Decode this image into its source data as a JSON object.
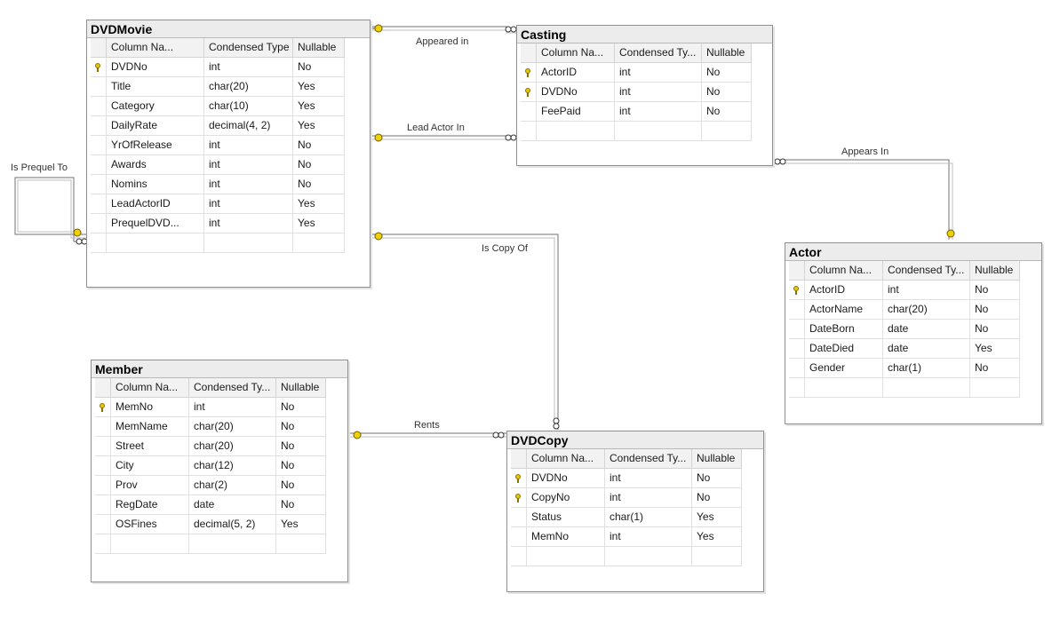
{
  "tables": [
    {
      "name": "DVDMovie",
      "headers": [
        "Column Na...",
        "Condensed Type",
        "Nullable"
      ],
      "rows": [
        {
          "key": true,
          "col": "DVDNo",
          "type": "int",
          "null": "No"
        },
        {
          "key": false,
          "col": "Title",
          "type": "char(20)",
          "null": "Yes"
        },
        {
          "key": false,
          "col": "Category",
          "type": "char(10)",
          "null": "Yes"
        },
        {
          "key": false,
          "col": "DailyRate",
          "type": "decimal(4, 2)",
          "null": "Yes"
        },
        {
          "key": false,
          "col": "YrOfRelease",
          "type": "int",
          "null": "No"
        },
        {
          "key": false,
          "col": "Awards",
          "type": "int",
          "null": "No"
        },
        {
          "key": false,
          "col": "Nomins",
          "type": "int",
          "null": "No"
        },
        {
          "key": false,
          "col": "LeadActorID",
          "type": "int",
          "null": "Yes"
        },
        {
          "key": false,
          "col": "PrequelDVD...",
          "type": "int",
          "null": "Yes"
        }
      ]
    },
    {
      "name": "Casting",
      "headers": [
        "Column Na...",
        "Condensed Ty...",
        "Nullable"
      ],
      "rows": [
        {
          "key": true,
          "col": "ActorID",
          "type": "int",
          "null": "No"
        },
        {
          "key": true,
          "col": "DVDNo",
          "type": "int",
          "null": "No"
        },
        {
          "key": false,
          "col": "FeePaid",
          "type": "int",
          "null": "No"
        }
      ]
    },
    {
      "name": "Actor",
      "headers": [
        "Column Na...",
        "Condensed Ty...",
        "Nullable"
      ],
      "rows": [
        {
          "key": true,
          "col": "ActorID",
          "type": "int",
          "null": "No"
        },
        {
          "key": false,
          "col": "ActorName",
          "type": "char(20)",
          "null": "No"
        },
        {
          "key": false,
          "col": "DateBorn",
          "type": "date",
          "null": "No"
        },
        {
          "key": false,
          "col": "DateDied",
          "type": "date",
          "null": "Yes"
        },
        {
          "key": false,
          "col": "Gender",
          "type": "char(1)",
          "null": "No"
        }
      ]
    },
    {
      "name": "Member",
      "headers": [
        "Column Na...",
        "Condensed Ty...",
        "Nullable"
      ],
      "rows": [
        {
          "key": true,
          "col": "MemNo",
          "type": "int",
          "null": "No"
        },
        {
          "key": false,
          "col": "MemName",
          "type": "char(20)",
          "null": "No"
        },
        {
          "key": false,
          "col": "Street",
          "type": "char(20)",
          "null": "No"
        },
        {
          "key": false,
          "col": "City",
          "type": "char(12)",
          "null": "No"
        },
        {
          "key": false,
          "col": "Prov",
          "type": "char(2)",
          "null": "No"
        },
        {
          "key": false,
          "col": "RegDate",
          "type": "date",
          "null": "No"
        },
        {
          "key": false,
          "col": "OSFines",
          "type": "decimal(5, 2)",
          "null": "Yes"
        }
      ]
    },
    {
      "name": "DVDCopy",
      "headers": [
        "Column Na...",
        "Condensed Ty...",
        "Nullable"
      ],
      "rows": [
        {
          "key": true,
          "col": "DVDNo",
          "type": "int",
          "null": "No"
        },
        {
          "key": true,
          "col": "CopyNo",
          "type": "int",
          "null": "No"
        },
        {
          "key": false,
          "col": "Status",
          "type": "char(1)",
          "null": "Yes"
        },
        {
          "key": false,
          "col": "MemNo",
          "type": "int",
          "null": "Yes"
        }
      ]
    }
  ],
  "relationships": {
    "appeared_in": "Appeared in",
    "lead_actor_in": "Lead Actor In",
    "appears_in": "Appears In",
    "is_prequel_to": "Is Prequel To",
    "is_copy_of": "Is Copy Of",
    "rents": "Rents"
  },
  "colors": {
    "key": "#e8c600",
    "line": "#6f6f6f"
  }
}
